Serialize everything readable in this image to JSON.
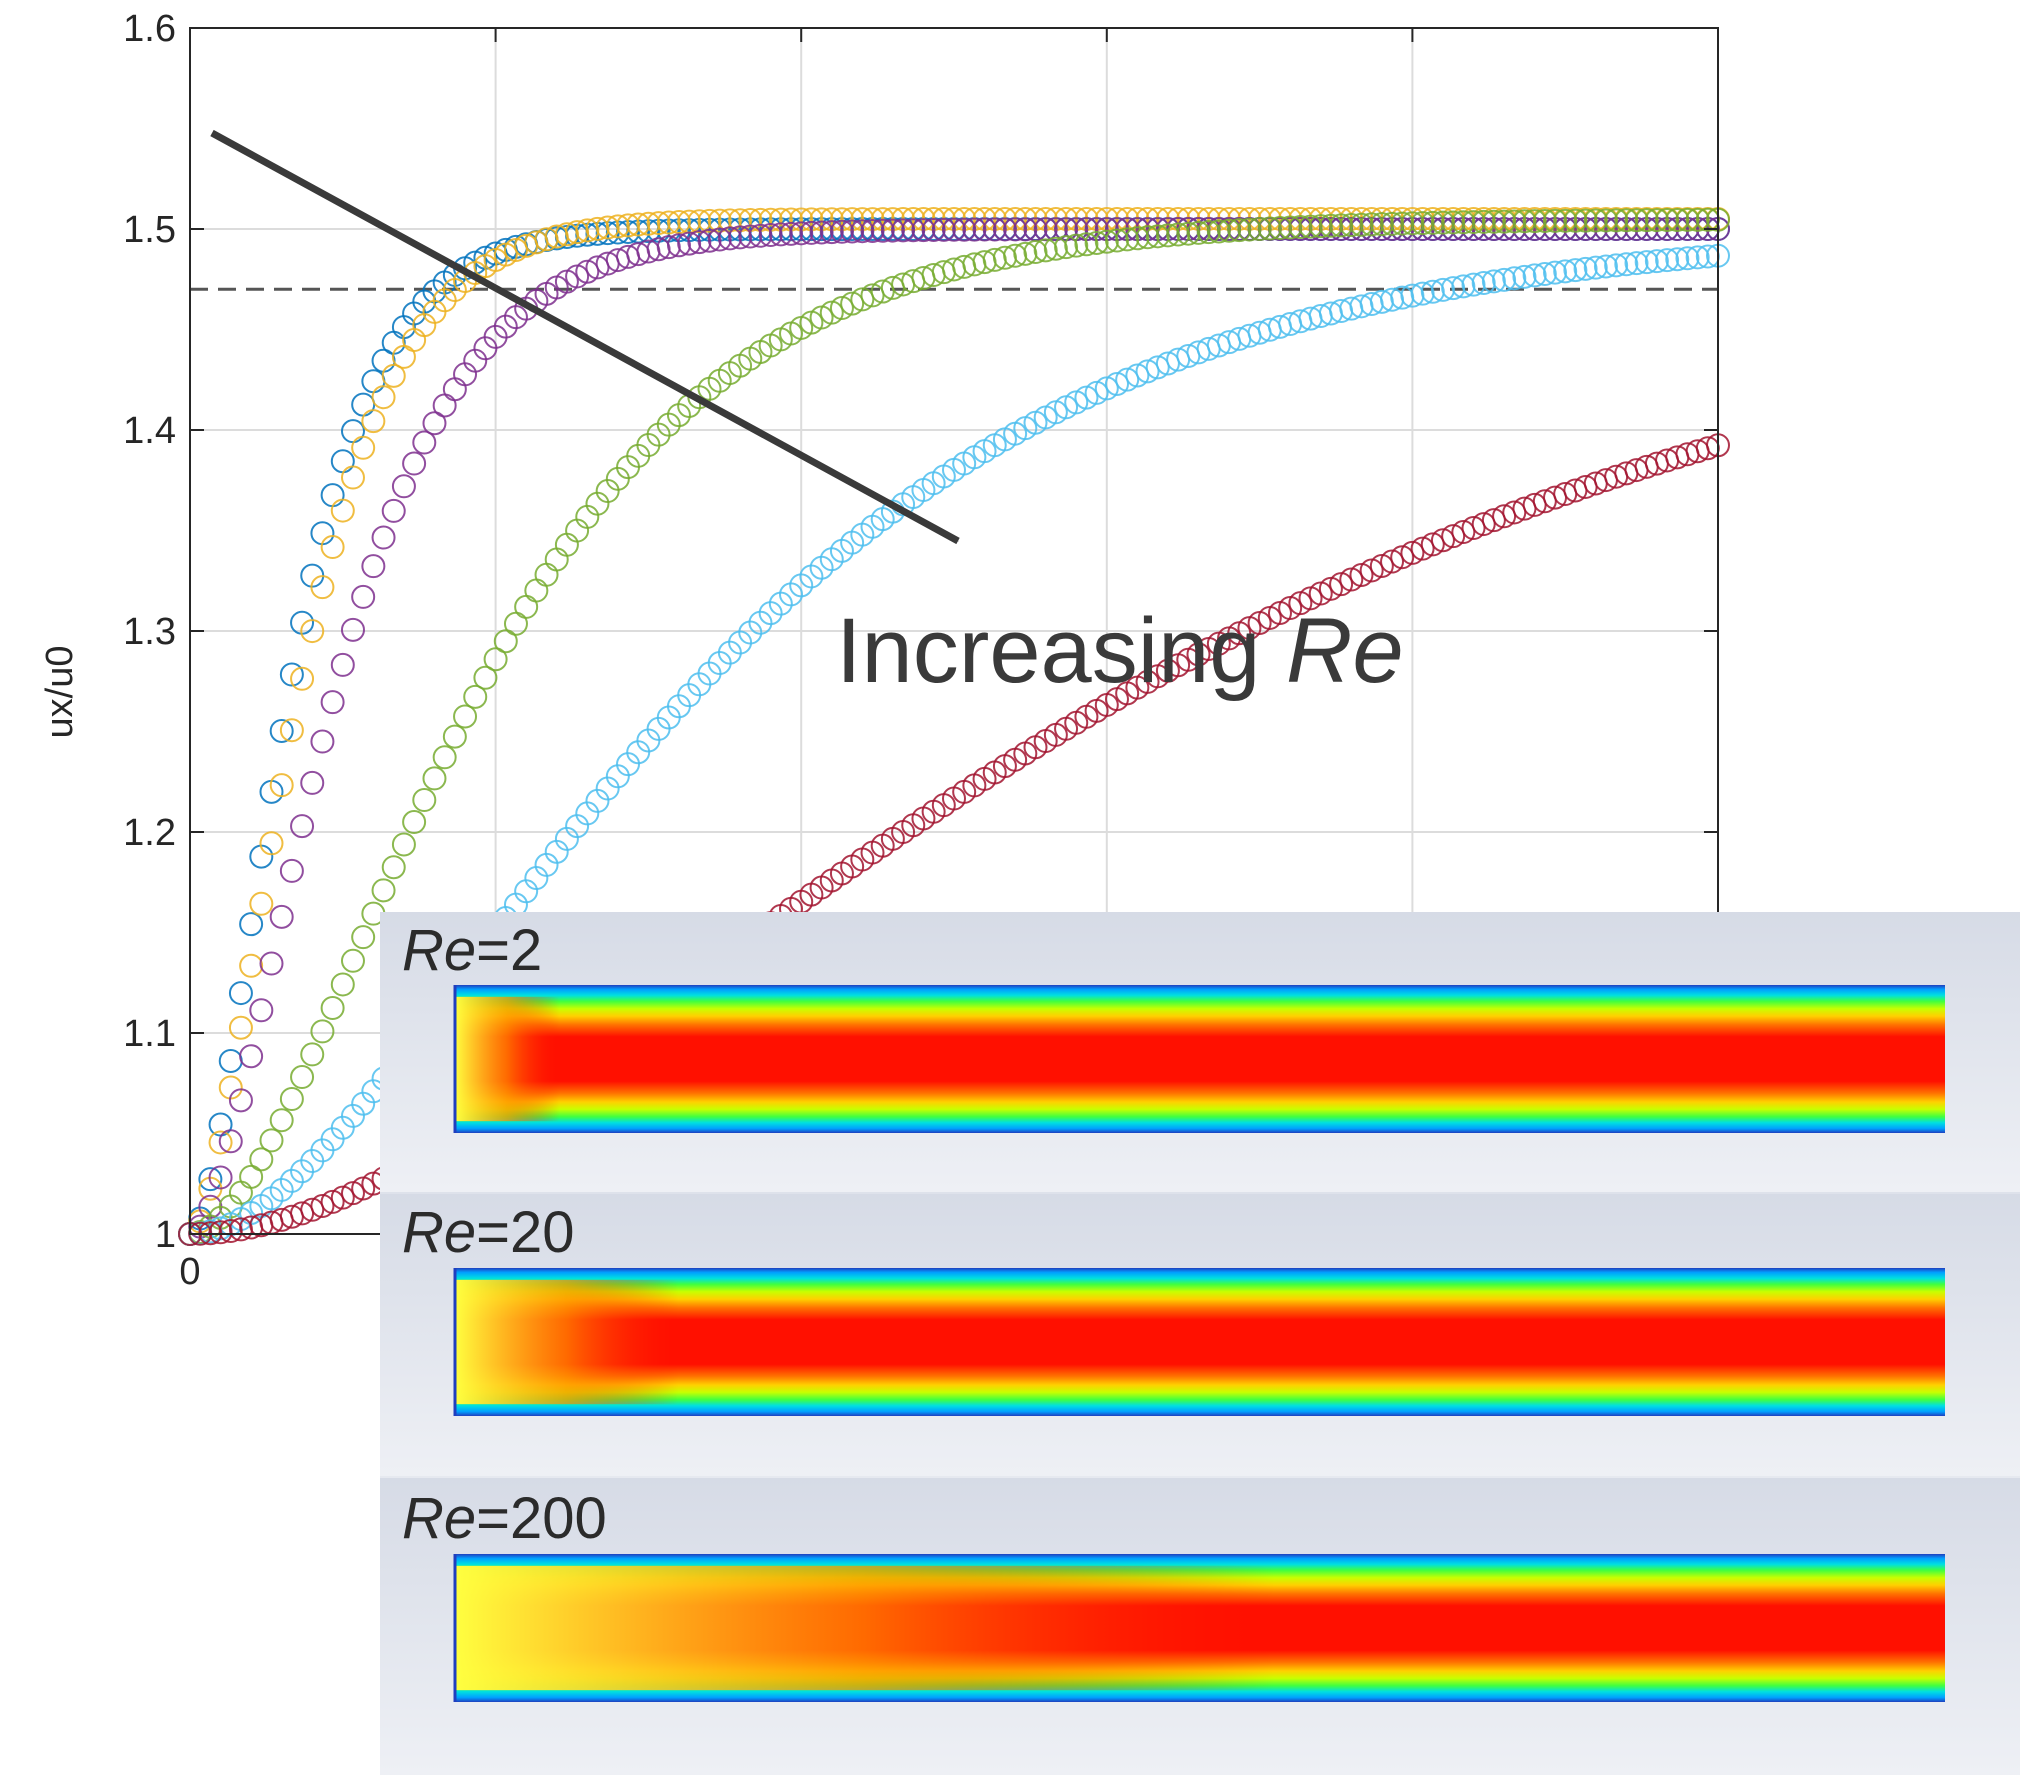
{
  "chart_data": {
    "type": "scatter",
    "title": "",
    "xlabel": "",
    "ylabel": "ux/u0",
    "xlim": [
      0,
      5
    ],
    "ylim": [
      1,
      1.6
    ],
    "yticks": [
      "1",
      "1.1",
      "1.2",
      "1.3",
      "1.4",
      "1.5",
      "1.6"
    ],
    "xticks": [
      "0"
    ],
    "grid": true,
    "reference_line": {
      "y": 1.47,
      "style": "dashed"
    },
    "series": [
      {
        "color": "#0072BD",
        "k": 5.6,
        "final": 1.5,
        "max": 1.5
      },
      {
        "color": "#EDB120",
        "k": 5.0,
        "final": 1.5,
        "max": 1.505
      },
      {
        "color": "#7E2F8E",
        "k": 3.8,
        "final": 1.5,
        "max": 1.5
      },
      {
        "color": "#77AC30",
        "k": 1.9,
        "final": 1.5,
        "max": 1.505
      },
      {
        "color": "#4DBEEE",
        "k": 1.1,
        "final": 1.5,
        "max": 1.5
      },
      {
        "color": "#A2142F",
        "k": 0.6,
        "final": 1.5,
        "max": 1.49
      }
    ],
    "annotation": {
      "text": "Increasing ",
      "italic": "Re"
    }
  },
  "insets": [
    {
      "re_symbol": "Re",
      "re_value": "=2",
      "development": 0.07
    },
    {
      "re_symbol": "Re",
      "re_value": "=20",
      "development": 0.15
    },
    {
      "re_symbol": "Re",
      "re_value": "=200",
      "development": 0.55
    }
  ]
}
